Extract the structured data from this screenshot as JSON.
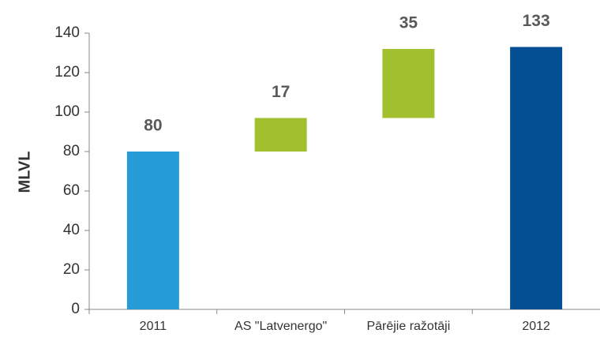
{
  "chart_data": {
    "type": "waterfall",
    "ylabel": "MLVL",
    "categories": [
      "2011",
      "AS \"Latvenergo\"",
      "Pārējie ražotāji",
      "2012"
    ],
    "values": [
      80,
      17,
      35,
      133
    ],
    "colors": [
      "#259bd7",
      "#a2bf2d",
      "#a2bf2d",
      "#034e92"
    ],
    "ylim": [
      0,
      140
    ],
    "yticks": [
      0,
      20,
      40,
      60,
      80,
      100,
      120,
      140
    ],
    "grid": false
  }
}
